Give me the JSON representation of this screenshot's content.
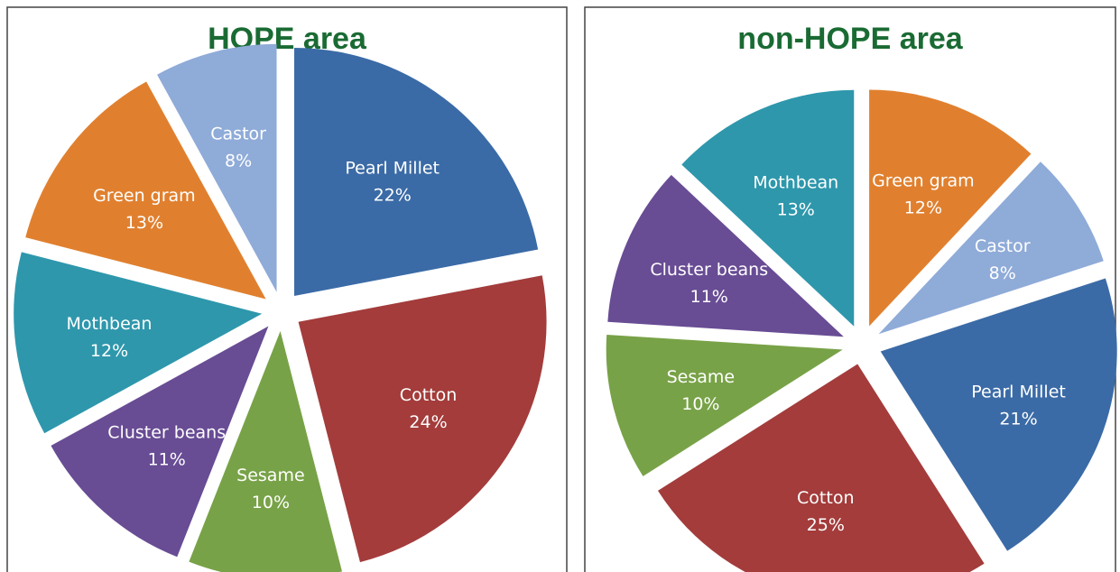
{
  "chart_data": [
    {
      "type": "pie",
      "title": "HOPE area",
      "categories": [
        "Pearl Millet",
        "Cotton",
        "Sesame",
        "Cluster beans",
        "Mothbean",
        "Green gram",
        "Castor"
      ],
      "values": [
        22,
        24,
        10,
        11,
        12,
        13,
        8
      ],
      "value_labels": [
        "22%",
        "24%",
        "10%",
        "11%",
        "12%",
        "13%",
        "8%"
      ],
      "colors": [
        "#3b6ba6",
        "#a33c3b",
        "#78a247",
        "#684c94",
        "#2e97ac",
        "#e0802f",
        "#8fabd8"
      ]
    },
    {
      "type": "pie",
      "title": "non-HOPE area",
      "categories": [
        "Green gram",
        "Castor",
        "Pearl Millet",
        "Cotton",
        "Sesame",
        "Cluster beans",
        "Mothbean"
      ],
      "values": [
        12,
        8,
        21,
        25,
        10,
        11,
        13
      ],
      "value_labels": [
        "12%",
        "8%",
        "21%",
        "25%",
        "10%",
        "11%",
        "13%"
      ],
      "colors": [
        "#e0802f",
        "#8fabd8",
        "#3b6ba6",
        "#a33c3b",
        "#78a247",
        "#684c94",
        "#2e97ac"
      ]
    }
  ]
}
